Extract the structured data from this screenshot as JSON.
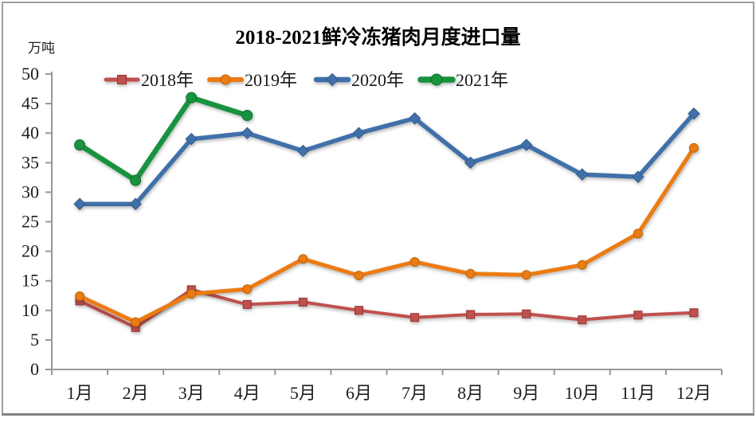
{
  "title": "2018-2021鲜冷冻猪肉月度进口量",
  "y_axis_unit": "万吨",
  "chart_data": {
    "type": "line",
    "title": "2018-2021鲜冷冻猪肉月度进口量",
    "ylabel": "万吨",
    "xlabel": "",
    "categories": [
      "1月",
      "2月",
      "3月",
      "4月",
      "5月",
      "6月",
      "7月",
      "8月",
      "9月",
      "10月",
      "11月",
      "12月"
    ],
    "ylim": [
      0,
      50
    ],
    "ytick_step": 5,
    "grid": false,
    "legend_position": "top",
    "series": [
      {
        "name": "2018年",
        "color": "#C0504D",
        "marker": "square",
        "marker_stroke": "#953734",
        "values": [
          11.6,
          7.1,
          13.5,
          11.0,
          11.4,
          10.0,
          8.8,
          9.3,
          9.4,
          8.4,
          9.2,
          9.6
        ]
      },
      {
        "name": "2019年",
        "color": "#EC7B12",
        "marker": "circle",
        "marker_stroke": "#BD6508",
        "values": [
          12.4,
          8.0,
          12.8,
          13.6,
          18.7,
          15.9,
          18.2,
          16.2,
          16.0,
          17.7,
          23.0,
          37.5
        ]
      },
      {
        "name": "2020年",
        "color": "#4070AA",
        "marker": "diamond",
        "marker_stroke": "#345B8A",
        "values": [
          28,
          28,
          39,
          40,
          37,
          40,
          42.5,
          35,
          38,
          33,
          32.6,
          43.3
        ]
      },
      {
        "name": "2021年",
        "color": "#17933E",
        "marker": "circle",
        "marker_stroke": "#116E2F",
        "values": [
          38,
          32,
          46,
          43,
          null,
          null,
          null,
          null,
          null,
          null,
          null,
          null
        ]
      }
    ]
  }
}
